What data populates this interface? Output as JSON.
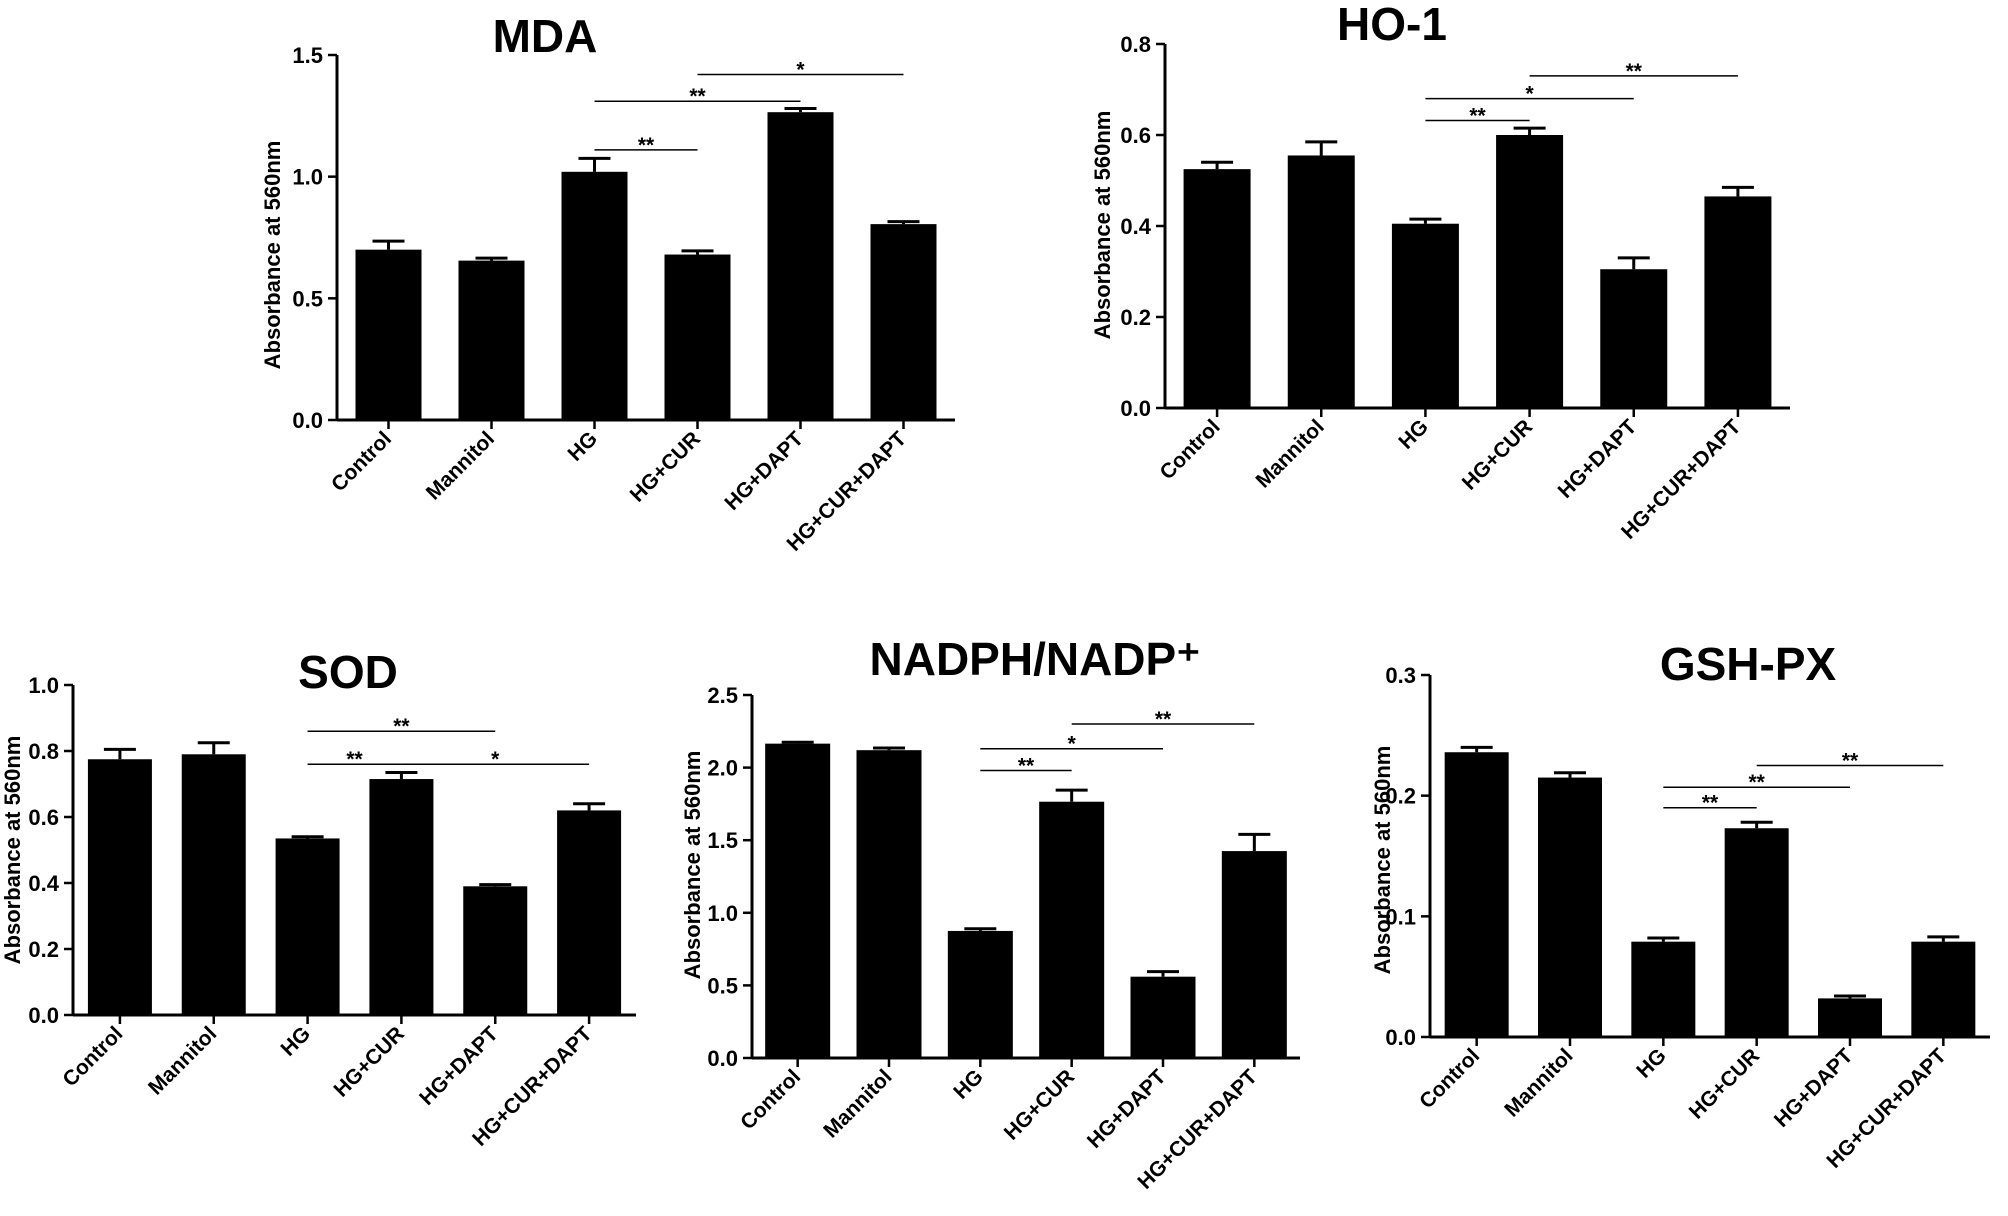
{
  "chart_data": [
    {
      "type": "bar",
      "title": "MDA",
      "ylabel": "Absorbance at 560nm",
      "xlabel": "",
      "ylim": [
        0,
        1.5
      ],
      "yticks": [
        "0.0",
        "0.5",
        "1.0",
        "1.5"
      ],
      "categories": [
        "Control",
        "Mannitol",
        "HG",
        "HG+CUR",
        "HG+DAPT",
        "HG+CUR+DAPT"
      ],
      "values": [
        0.7,
        0.655,
        1.02,
        0.68,
        1.265,
        0.805
      ],
      "errors": [
        0.035,
        0.01,
        0.055,
        0.015,
        0.015,
        0.01
      ],
      "significance": [
        {
          "from": 2,
          "to": 3,
          "label": "**",
          "y": 1.11
        },
        {
          "from": 2,
          "to": 4,
          "label": "**",
          "y": 1.31
        },
        {
          "from": 3,
          "to": 5,
          "label": "*",
          "y": 1.42
        }
      ]
    },
    {
      "type": "bar",
      "title": "HO-1",
      "ylabel": "Absorbance at 560nm",
      "xlabel": "",
      "ylim": [
        0,
        0.8
      ],
      "yticks": [
        "0.0",
        "0.2",
        "0.4",
        "0.6",
        "0.8"
      ],
      "categories": [
        "Control",
        "Mannitol",
        "HG",
        "HG+CUR",
        "HG+DAPT",
        "HG+CUR+DAPT"
      ],
      "values": [
        0.525,
        0.555,
        0.405,
        0.6,
        0.305,
        0.465
      ],
      "errors": [
        0.015,
        0.03,
        0.01,
        0.015,
        0.025,
        0.02
      ],
      "significance": [
        {
          "from": 2,
          "to": 3,
          "label": "**",
          "y": 0.632
        },
        {
          "from": 2,
          "to": 4,
          "label": "*",
          "y": 0.68
        },
        {
          "from": 3,
          "to": 5,
          "label": "**",
          "y": 0.73
        }
      ]
    },
    {
      "type": "bar",
      "title": "SOD",
      "ylabel": "Absorbance at 560nm",
      "xlabel": "",
      "ylim": [
        0,
        1.0
      ],
      "yticks": [
        "0.0",
        "0.2",
        "0.4",
        "0.6",
        "0.8",
        "1.0"
      ],
      "categories": [
        "Control",
        "Mannitol",
        "HG",
        "HG+CUR",
        "HG+DAPT",
        "HG+CUR+DAPT"
      ],
      "values": [
        0.775,
        0.79,
        0.535,
        0.715,
        0.39,
        0.62
      ],
      "errors": [
        0.03,
        0.035,
        0.005,
        0.02,
        0.005,
        0.02
      ],
      "significance": [
        {
          "from": 2,
          "to": 3,
          "label": "**",
          "y": 0.76
        },
        {
          "from": 3,
          "to": 5,
          "label": "*",
          "y": 0.76
        },
        {
          "from": 2,
          "to": 4,
          "label": "**",
          "y": 0.86
        }
      ]
    },
    {
      "type": "bar",
      "title": "NADPH/NADP⁺",
      "ylabel": "Absorbance at 560nm",
      "xlabel": "",
      "ylim": [
        0,
        2.5
      ],
      "yticks": [
        "0.0",
        "0.5",
        "1.0",
        "1.5",
        "2.0",
        "2.5"
      ],
      "categories": [
        "Control",
        "Mannitol",
        "HG",
        "HG+CUR",
        "HG+DAPT",
        "HG+CUR+DAPT"
      ],
      "values": [
        2.165,
        2.12,
        0.875,
        1.765,
        0.56,
        1.425
      ],
      "errors": [
        0.01,
        0.015,
        0.015,
        0.08,
        0.035,
        0.115
      ],
      "significance": [
        {
          "from": 2,
          "to": 3,
          "label": "**",
          "y": 1.98
        },
        {
          "from": 2,
          "to": 4,
          "label": "*",
          "y": 2.13
        },
        {
          "from": 3,
          "to": 5,
          "label": "**",
          "y": 2.3
        }
      ]
    },
    {
      "type": "bar",
      "title": "GSH-PX",
      "ylabel": "Absorbance at 560nm",
      "xlabel": "",
      "ylim": [
        0,
        0.3
      ],
      "yticks": [
        "0.0",
        "0.1",
        "0.2",
        "0.3"
      ],
      "categories": [
        "Control",
        "Mannitol",
        "HG",
        "HG+CUR",
        "HG+DAPT",
        "HG+CUR+DAPT"
      ],
      "values": [
        0.236,
        0.215,
        0.079,
        0.173,
        0.032,
        0.079
      ],
      "errors": [
        0.004,
        0.004,
        0.003,
        0.005,
        0.002,
        0.004
      ],
      "significance": [
        {
          "from": 2,
          "to": 3,
          "label": "**",
          "y": 0.19
        },
        {
          "from": 2,
          "to": 4,
          "label": "**",
          "y": 0.207
        },
        {
          "from": 3,
          "to": 5,
          "label": "**",
          "y": 0.225
        }
      ]
    }
  ]
}
